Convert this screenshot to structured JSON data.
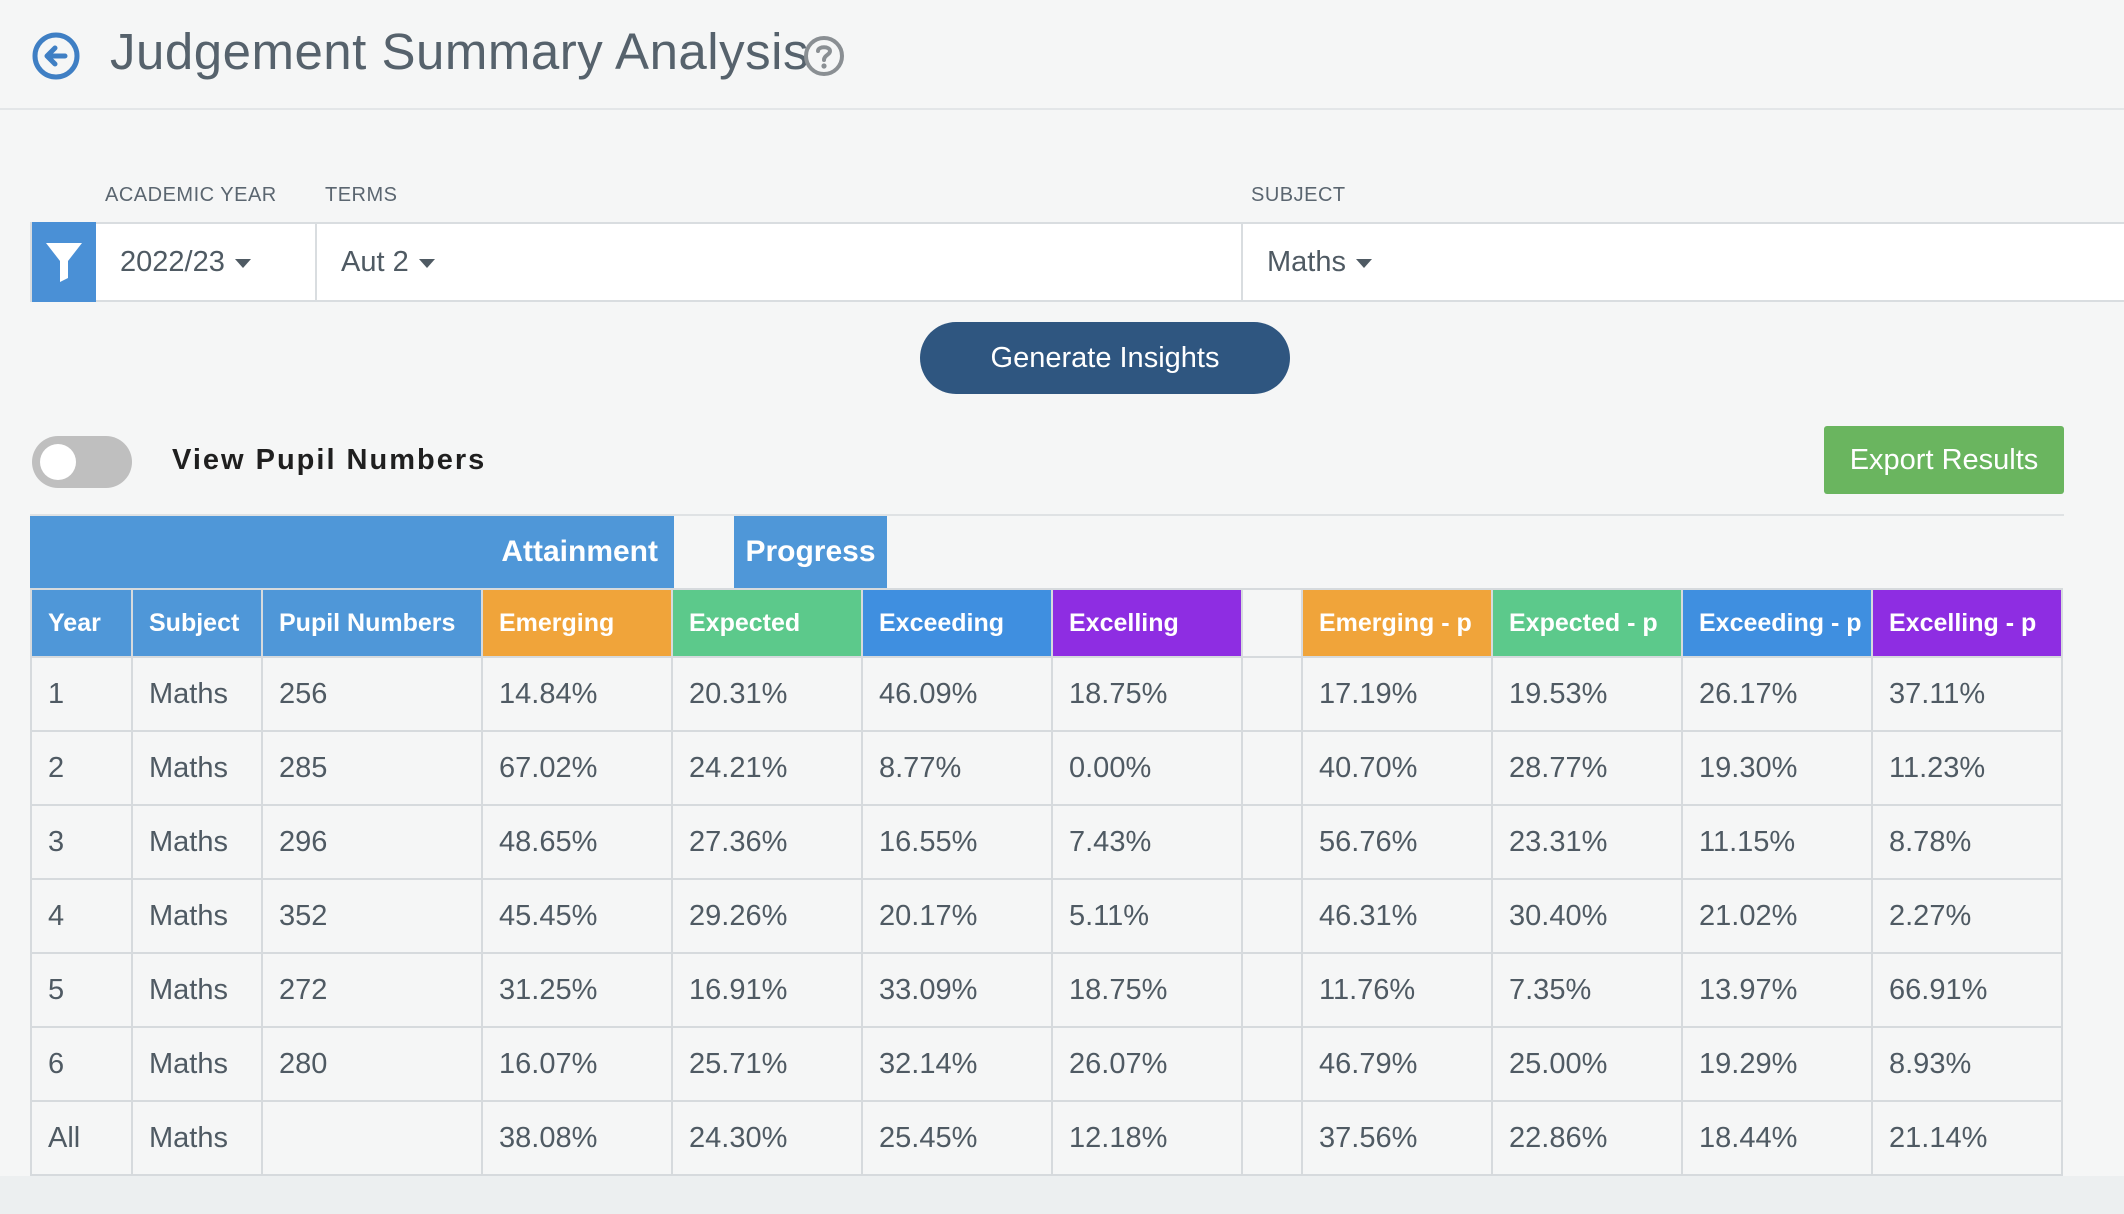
{
  "header": {
    "title": "Judgement Summary Analysis"
  },
  "filters": {
    "academic_year_label": "ACADEMIC YEAR",
    "academic_year_value": "2022/23",
    "terms_label": "TERMS",
    "terms_value": "Aut 2",
    "subject_label": "SUBJECT",
    "subject_value": "Maths"
  },
  "actions": {
    "generate_label": "Generate Insights",
    "export_label": "Export Results",
    "toggle_label": "View Pupil Numbers",
    "toggle_on": false
  },
  "table": {
    "group_attainment": "Attainment",
    "group_progress": "Progress",
    "columns": {
      "year": "Year",
      "subject": "Subject",
      "pupils": "Pupil Numbers",
      "emerging": "Emerging",
      "expected": "Expected",
      "exceeding": "Exceeding",
      "excelling": "Excelling",
      "emerging_p": "Emerging - p",
      "expected_p": "Expected - p",
      "exceeding_p": "Exceeding - p",
      "excelling_p": "Excelling - p"
    },
    "rows": [
      [
        "1",
        "Maths",
        "256",
        "14.84%",
        "20.31%",
        "46.09%",
        "18.75%",
        "17.19%",
        "19.53%",
        "26.17%",
        "37.11%"
      ],
      [
        "2",
        "Maths",
        "285",
        "67.02%",
        "24.21%",
        "8.77%",
        "0.00%",
        "40.70%",
        "28.77%",
        "19.30%",
        "11.23%"
      ],
      [
        "3",
        "Maths",
        "296",
        "48.65%",
        "27.36%",
        "16.55%",
        "7.43%",
        "56.76%",
        "23.31%",
        "11.15%",
        "8.78%"
      ],
      [
        "4",
        "Maths",
        "352",
        "45.45%",
        "29.26%",
        "20.17%",
        "5.11%",
        "46.31%",
        "30.40%",
        "21.02%",
        "2.27%"
      ],
      [
        "5",
        "Maths",
        "272",
        "31.25%",
        "16.91%",
        "33.09%",
        "18.75%",
        "11.76%",
        "7.35%",
        "13.97%",
        "66.91%"
      ],
      [
        "6",
        "Maths",
        "280",
        "16.07%",
        "25.71%",
        "32.14%",
        "26.07%",
        "46.79%",
        "25.00%",
        "19.29%",
        "8.93%"
      ],
      [
        "All",
        "Maths",
        "",
        "38.08%",
        "24.30%",
        "25.45%",
        "12.18%",
        "37.56%",
        "22.86%",
        "18.44%",
        "21.14%"
      ]
    ]
  },
  "colors": {
    "primary": "#4f97d8",
    "generate_button": "#2f5680",
    "export_button": "#6ab55f",
    "emerging": "#f0a43a",
    "expected": "#5cc98b",
    "exceeding": "#3f8fe0",
    "excelling": "#8e2de2"
  },
  "icons": [
    "back-arrow-icon",
    "help-icon",
    "filter-icon"
  ]
}
